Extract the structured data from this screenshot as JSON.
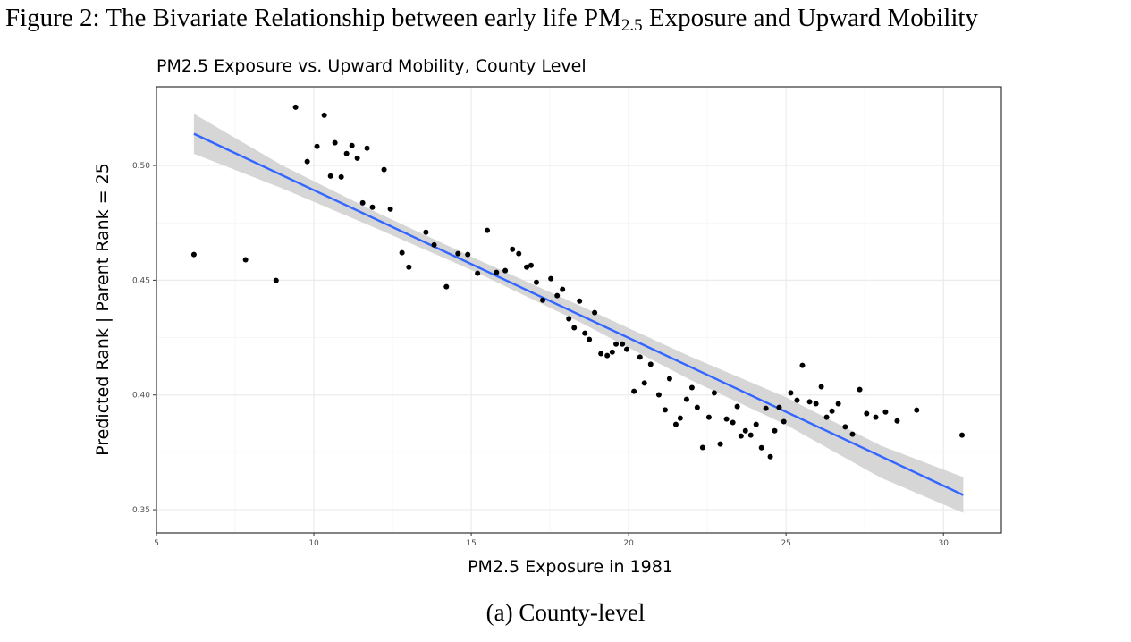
{
  "figure": {
    "title_prefix": "Figure 2:  The Bivariate Relationship between early life PM",
    "title_subscript": "2.5",
    "title_suffix": " Exposure and Upward Mobility",
    "caption": "(a) County-level"
  },
  "chart_data": {
    "type": "scatter",
    "title": "PM2.5 Exposure vs. Upward Mobility, County Level",
    "xlabel": "PM2.5 Exposure in 1981",
    "ylabel": "Predicted Rank | Parent Rank = 25",
    "xlim": [
      5,
      31.84
    ],
    "ylim": [
      0.3399,
      0.5343
    ],
    "x_ticks": [
      5,
      10,
      15,
      20,
      25,
      30
    ],
    "x_tick_labels": [
      "5",
      "10",
      "15",
      "20",
      "25",
      "30"
    ],
    "y_ticks": [
      0.35,
      0.4,
      0.45,
      0.5
    ],
    "y_tick_labels": [
      "0.35",
      "0.40",
      "0.45",
      "0.50"
    ],
    "grid": true,
    "legend": "none",
    "colors": {
      "points": "#000000",
      "fit_line": "#3366FF",
      "ci_band": "#d4d4d4",
      "grid": "#ebebeb"
    },
    "points": {
      "x": [
        6.19,
        7.83,
        8.8,
        9.42,
        9.79,
        10.1,
        10.33,
        10.53,
        10.67,
        10.87,
        11.04,
        11.21,
        11.38,
        11.69,
        11.55,
        11.86,
        12.23,
        12.43,
        12.8,
        13.02,
        13.56,
        13.82,
        14.21,
        14.58,
        14.89,
        15.2,
        15.51,
        15.8,
        16.08,
        16.31,
        16.51,
        16.76,
        16.9,
        17.07,
        17.27,
        17.53,
        17.73,
        17.9,
        18.1,
        18.27,
        18.44,
        18.61,
        18.75,
        18.92,
        19.12,
        19.32,
        19.48,
        19.6,
        19.8,
        19.94,
        20.17,
        20.36,
        20.5,
        20.7,
        20.96,
        21.16,
        21.3,
        21.5,
        21.64,
        21.84,
        22.01,
        22.18,
        22.35,
        22.55,
        22.72,
        22.91,
        23.11,
        23.31,
        23.45,
        23.57,
        23.71,
        23.88,
        24.05,
        24.22,
        24.36,
        24.5,
        24.64,
        24.78,
        24.93,
        25.15,
        25.35,
        25.52,
        25.75,
        25.95,
        26.12,
        26.29,
        26.46,
        26.66,
        26.88,
        27.11,
        27.34,
        27.56,
        27.85,
        28.16,
        28.53,
        29.15,
        30.59
      ],
      "y": [
        0.4612,
        0.4589,
        0.4499,
        0.5254,
        0.5017,
        0.5083,
        0.5219,
        0.4954,
        0.5099,
        0.495,
        0.5052,
        0.5087,
        0.5032,
        0.5075,
        0.4837,
        0.4818,
        0.4982,
        0.481,
        0.462,
        0.4557,
        0.4709,
        0.4654,
        0.4472,
        0.4616,
        0.4612,
        0.453,
        0.4717,
        0.4534,
        0.4542,
        0.4635,
        0.4616,
        0.4557,
        0.4565,
        0.4491,
        0.4413,
        0.4507,
        0.4433,
        0.446,
        0.4332,
        0.4293,
        0.4409,
        0.4269,
        0.4242,
        0.4359,
        0.418,
        0.4172,
        0.4187,
        0.4222,
        0.4222,
        0.4199,
        0.4016,
        0.4165,
        0.4052,
        0.4134,
        0.4001,
        0.3935,
        0.4071,
        0.3872,
        0.3899,
        0.3981,
        0.4032,
        0.3946,
        0.3771,
        0.3903,
        0.4009,
        0.3786,
        0.3895,
        0.388,
        0.395,
        0.3821,
        0.3844,
        0.3825,
        0.3872,
        0.377,
        0.3942,
        0.3731,
        0.3844,
        0.3946,
        0.3884,
        0.4009,
        0.3977,
        0.4129,
        0.397,
        0.3962,
        0.4036,
        0.3903,
        0.393,
        0.3962,
        0.3861,
        0.3829,
        0.4024,
        0.3919,
        0.3903,
        0.3926,
        0.3887,
        0.3934,
        0.3825
      ]
    },
    "fit": {
      "type": "linear",
      "x": [
        6.19,
        30.63
      ],
      "y": [
        0.5138,
        0.3564
      ]
    },
    "ci_band": {
      "x": [
        6.19,
        9,
        12,
        15,
        18.5,
        22,
        25,
        28,
        30.63
      ],
      "lower": [
        0.5051,
        0.49,
        0.4725,
        0.4545,
        0.4314,
        0.4063,
        0.387,
        0.364,
        0.3486
      ],
      "upper": [
        0.5225,
        0.5,
        0.4795,
        0.4603,
        0.4386,
        0.4165,
        0.399,
        0.378,
        0.3642
      ]
    }
  }
}
